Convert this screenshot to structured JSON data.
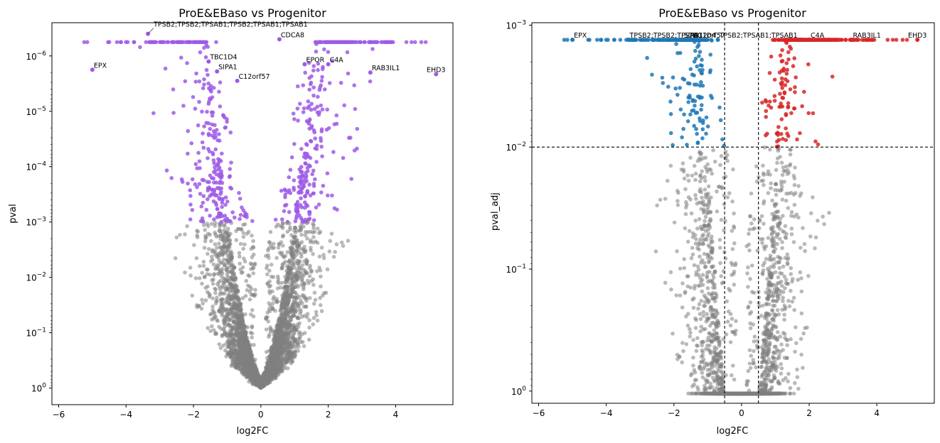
{
  "figure": {
    "colors": {
      "background": "#ffffff",
      "ns": "#808080",
      "sig": "#9d5ae6",
      "down": "#1f77b4",
      "up": "#d62728",
      "axis": "#000000"
    }
  },
  "chart_data": [
    {
      "type": "scatter",
      "title": "ProE&EBaso vs Progenitor",
      "xlabel": "log2FC",
      "ylabel": "pval",
      "xlim": [
        -6.2,
        5.7
      ],
      "ylim_log10": [
        0.3,
        -6.6
      ],
      "y_scale": "log, inverted",
      "x_ticks": [
        -6,
        -4,
        -2,
        0,
        2,
        4
      ],
      "y_ticks": [
        {
          "base": "10",
          "exp": "−6",
          "log10": -6
        },
        {
          "base": "10",
          "exp": "−5",
          "log10": -5
        },
        {
          "base": "10",
          "exp": "−4",
          "log10": -4
        },
        {
          "base": "10",
          "exp": "−3",
          "log10": -3
        },
        {
          "base": "10",
          "exp": "−2",
          "log10": -2
        },
        {
          "base": "10",
          "exp": "−1",
          "log10": -1
        },
        {
          "base": "10",
          "exp": "0",
          "log10": 0
        }
      ],
      "grid": false,
      "legend": "none",
      "labeled_genes": [
        {
          "gene": "TPSB2;TPSB2;TPSAB1;TPSB2;TPSAB1;TPSAB1",
          "x": -3.35,
          "log10p": -6.4
        },
        {
          "gene": "CDCA8",
          "x": 0.55,
          "log10p": -6.3
        },
        {
          "gene": "TBC1D4",
          "x": -1.55,
          "log10p": -5.9
        },
        {
          "gene": "EPOR",
          "x": 1.3,
          "log10p": -5.85
        },
        {
          "gene": "C4A",
          "x": 2.0,
          "log10p": -5.85
        },
        {
          "gene": "EPX",
          "x": -5.0,
          "log10p": -5.75
        },
        {
          "gene": "SIPA1",
          "x": -1.3,
          "log10p": -5.72
        },
        {
          "gene": "RAB3IL1",
          "x": 3.25,
          "log10p": -5.7
        },
        {
          "gene": "EHD3",
          "x": 5.2,
          "log10p": -5.67
        },
        {
          "gene": "C12orf57",
          "x": -0.7,
          "log10p": -5.55
        }
      ],
      "threshold": {
        "pval": 0.001
      }
    },
    {
      "type": "scatter",
      "title": "ProE&EBaso vs Progenitor",
      "xlabel": "log2FC",
      "ylabel": "pval_adj",
      "xlim": [
        -6.2,
        5.7
      ],
      "ylim_log10": [
        0.1,
        -3.02
      ],
      "y_scale": "log, inverted",
      "x_ticks": [
        -6,
        -4,
        -2,
        0,
        2,
        4
      ],
      "y_ticks": [
        {
          "base": "10",
          "exp": "−3",
          "log10": -3
        },
        {
          "base": "10",
          "exp": "−2",
          "log10": -2
        },
        {
          "base": "10",
          "exp": "−1",
          "log10": -1
        },
        {
          "base": "10",
          "exp": "0",
          "log10": 0
        }
      ],
      "grid": false,
      "legend": "none",
      "cutoffs": {
        "log2fc": [
          -0.5,
          0.5
        ],
        "pval_adj": 0.01
      },
      "labeled_genes": [
        {
          "gene": "EPX",
          "x": -5.0,
          "log10padj": -2.88
        },
        {
          "gene": "TPSB2;TPSB2;TPSAB1",
          "x": -3.35,
          "log10padj": -2.88
        },
        {
          "gene": "SIPA1",
          "x": -1.75,
          "log10padj": -2.88
        },
        {
          "gene": "TBC1D4",
          "x": -1.6,
          "log10padj": -2.88
        },
        {
          "gene": "C12orf57",
          "x": -1.45,
          "log10padj": -2.88
        },
        {
          "gene": "TPSB2;TPSAB1;TPSAB1",
          "x": -0.7,
          "log10padj": -2.88
        },
        {
          "gene": "C4A",
          "x": 2.0,
          "log10padj": -2.88
        },
        {
          "gene": "RAB3IL1",
          "x": 3.25,
          "log10padj": -2.88
        },
        {
          "gene": "EHD3",
          "x": 5.2,
          "log10padj": -2.88
        }
      ]
    }
  ]
}
